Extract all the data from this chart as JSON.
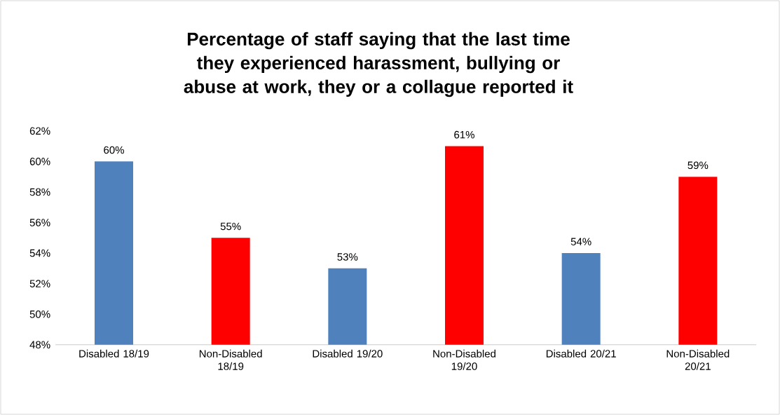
{
  "chart_data": {
    "type": "bar",
    "title": "Percentage of staff saying that the last time they experienced harassment, bullying or abuse at work, they or a collague reported it",
    "categories": [
      "Disabled 18/19",
      "Non-Disabled 18/19",
      "Disabled 19/20",
      "Non-Disabled 19/20",
      "Disabled 20/21",
      "Non-Disabled 20/21"
    ],
    "values": [
      60,
      55,
      53,
      61,
      54,
      59
    ],
    "colors": [
      "#4f81bd",
      "#ff0000",
      "#4f81bd",
      "#ff0000",
      "#4f81bd",
      "#ff0000"
    ],
    "value_labels": [
      "60%",
      "55%",
      "53%",
      "61%",
      "54%",
      "59%"
    ],
    "ylim": [
      48,
      62
    ],
    "yticks": [
      {
        "value": 48,
        "label": "48%"
      },
      {
        "value": 50,
        "label": "50%"
      },
      {
        "value": 52,
        "label": "52%"
      },
      {
        "value": 54,
        "label": "54%"
      },
      {
        "value": 56,
        "label": "56%"
      },
      {
        "value": 58,
        "label": "58%"
      },
      {
        "value": 60,
        "label": "60%"
      },
      {
        "value": 62,
        "label": "62%"
      }
    ],
    "grid": false
  }
}
